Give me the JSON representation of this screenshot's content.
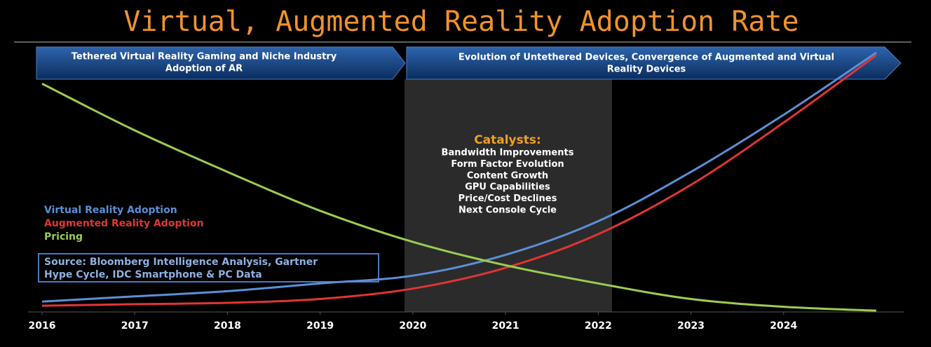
{
  "chart_data": {
    "type": "line",
    "title": "Virtual, Augmented Reality Adoption Rate",
    "phases": [
      {
        "lines": [
          "Tethered Virtual Reality Gaming and Niche Industry",
          "Adoption of AR"
        ]
      },
      {
        "lines": [
          "Evolution of Untethered Devices, Convergence of Augmented and Virtual",
          "Reality Devices"
        ]
      }
    ],
    "catalysts_title": "Catalysts:",
    "catalysts": [
      "Bandwidth Improvements",
      "Form Factor Evolution",
      "Content Growth",
      "GPU Capabilities",
      "Price/Cost Declines",
      "Next Console Cycle"
    ],
    "source": [
      "Source: Bloomberg Intelligence Analysis, Gartner",
      "Hype Cycle, IDC Smartphone & PC Data"
    ],
    "x": [
      2016,
      2017,
      2018,
      2019,
      2020,
      2021,
      2022,
      2023,
      2024,
      2025
    ],
    "xlim": [
      2016,
      2025
    ],
    "xticks": [
      2016,
      2017,
      2018,
      2019,
      2020,
      2021,
      2022,
      2023,
      2024
    ],
    "ylim": [
      0,
      100
    ],
    "series": [
      {
        "name": "Virtual Reality Adoption",
        "color": "#5b8fd6",
        "values": [
          4,
          6,
          8,
          11,
          14,
          22,
          35,
          54,
          76,
          100
        ]
      },
      {
        "name": "Augmented Reality Adoption",
        "color": "#e03535",
        "values": [
          2.4,
          3,
          3.5,
          5,
          9,
          17,
          30,
          49,
          73,
          99
        ]
      },
      {
        "name": "Pricing",
        "color": "#9ccc50",
        "values": [
          88,
          70,
          54,
          39,
          27,
          18,
          11,
          5,
          2,
          0.5
        ]
      }
    ]
  }
}
